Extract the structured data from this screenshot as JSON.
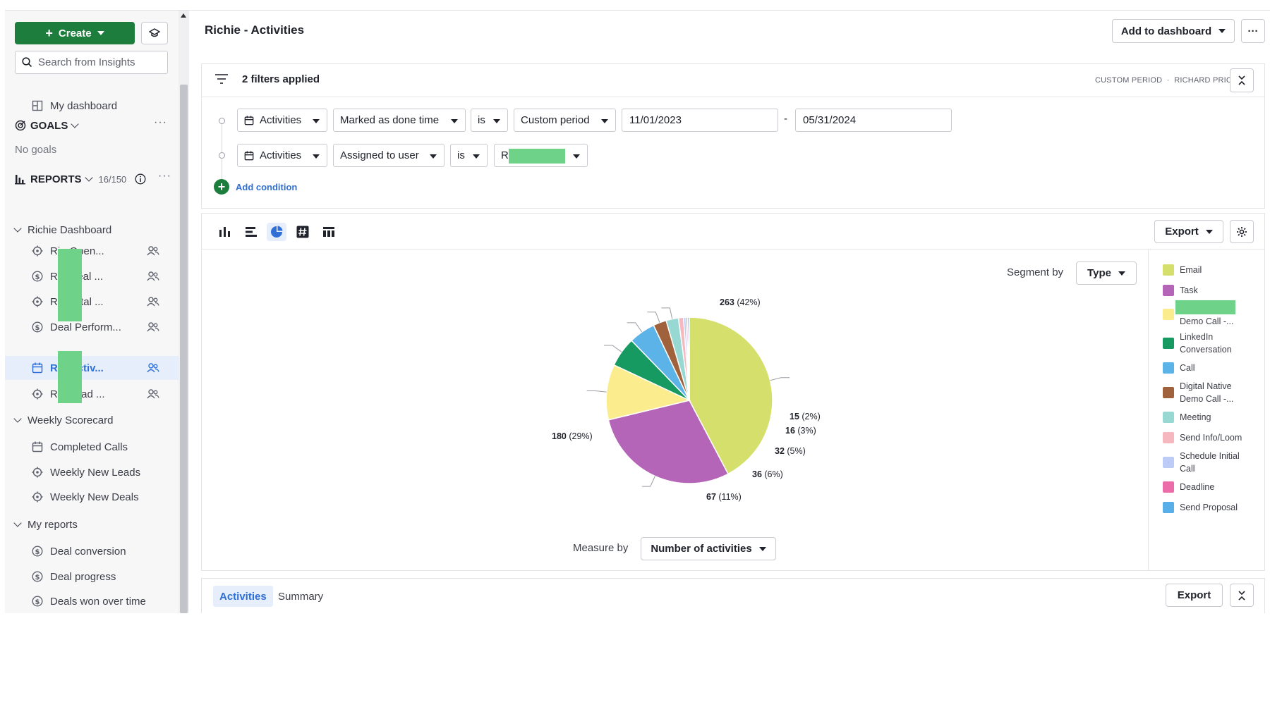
{
  "sidebar": {
    "create_label": "Create",
    "search_placeholder": "Search from Insights",
    "my_dashboard": "My dashboard",
    "goals": {
      "title": "GOALS",
      "empty": "No goals"
    },
    "reports": {
      "title": "REPORTS",
      "count": "16/150"
    },
    "groups": [
      {
        "title": "Richie Dashboard",
        "items": [
          {
            "label": "Ri       - Open...",
            "icon": "target-icon",
            "shared": true
          },
          {
            "label": "Ri       - Deal ...",
            "icon": "dollar-icon",
            "shared": true
          },
          {
            "label": "Ri       - Total ...",
            "icon": "target-icon",
            "shared": true
          },
          {
            "label": "Deal Perform...",
            "icon": "dollar-icon",
            "shared": true
          },
          {
            "label": "Ri       - Activ...",
            "icon": "calendar-icon",
            "shared": true,
            "active": true
          },
          {
            "label": "Ri       - Lead ...",
            "icon": "target-icon",
            "shared": true
          }
        ]
      },
      {
        "title": "Weekly Scorecard",
        "items": [
          {
            "label": "Completed Calls",
            "icon": "calendar-icon"
          },
          {
            "label": "Weekly New Leads",
            "icon": "target-icon"
          },
          {
            "label": "Weekly New Deals",
            "icon": "target-icon"
          }
        ]
      },
      {
        "title": "My reports",
        "items": [
          {
            "label": "Deal conversion",
            "icon": "dollar-icon"
          },
          {
            "label": "Deal progress",
            "icon": "dollar-icon"
          },
          {
            "label": "Deals won over time",
            "icon": "dollar-icon"
          }
        ]
      }
    ]
  },
  "header": {
    "title": "Richie - Activities",
    "add_to_dashboard": "Add to dashboard",
    "more": "···"
  },
  "filters": {
    "title": "2 filters applied",
    "meta_period": "CUSTOM PERIOD",
    "meta_user": "RICHARD PRICE",
    "rows": [
      {
        "entity": "Activities",
        "field": "Marked as done time",
        "op": "is",
        "value": "Custom period",
        "from": "11/01/2023",
        "to": "05/31/2024"
      },
      {
        "entity": "Activities",
        "field": "Assigned to user",
        "op": "is",
        "value": "Ri"
      }
    ],
    "add_condition": "Add condition"
  },
  "chart": {
    "export_label": "Export",
    "segment_label": "Segment by",
    "segment_value": "Type",
    "measure_label": "Measure by",
    "measure_value": "Number of activities"
  },
  "chart_data": {
    "type": "pie",
    "slices": [
      {
        "name": "Email",
        "value": 263,
        "label": "263",
        "pct": "(42%)",
        "color": "#d4df6c"
      },
      {
        "name": "Task",
        "value": 180,
        "label": "180",
        "pct": "(29%)",
        "color": "#b565b8"
      },
      {
        "name": "Demo Call -...",
        "value": 67,
        "label": "67",
        "pct": "(11%)",
        "color": "#fbec8e"
      },
      {
        "name": "LinkedIn Conversation",
        "value": 36,
        "label": "36",
        "pct": "(6%)",
        "color": "#179a62"
      },
      {
        "name": "Call",
        "value": 32,
        "label": "32",
        "pct": "(5%)",
        "color": "#5cb3e8"
      },
      {
        "name": "Digital Native Demo Call -...",
        "value": 16,
        "label": "16",
        "pct": "(3%)",
        "color": "#a0623c"
      },
      {
        "name": "Meeting",
        "value": 15,
        "label": "15",
        "pct": "(2%)",
        "color": "#97d8d3"
      },
      {
        "name": "Send Info/Loom",
        "value": 6,
        "color": "#f6b7bf"
      },
      {
        "name": "Schedule Initial Call",
        "value": 3,
        "color": "#bcccf6"
      },
      {
        "name": "Deadline",
        "value": 2,
        "color": "#ec6ca9"
      },
      {
        "name": "Send Proposal",
        "value": 2,
        "color": "#58aee6"
      }
    ],
    "legend": [
      {
        "name": "Email",
        "color": "#d4df6c"
      },
      {
        "name": "Task",
        "color": "#b565b8"
      },
      {
        "name": "Demo Call -...",
        "color": "#fbec8e",
        "redacted": true
      },
      {
        "name": "LinkedIn Conversation",
        "color": "#179a62"
      },
      {
        "name": "Call",
        "color": "#5cb3e8"
      },
      {
        "name": "Digital Native Demo Call -...",
        "color": "#a0623c"
      },
      {
        "name": "Meeting",
        "color": "#97d8d3"
      },
      {
        "name": "Send Info/Loom",
        "color": "#f6b7bf"
      },
      {
        "name": "Schedule Initial Call",
        "color": "#bcccf6"
      },
      {
        "name": "Deadline",
        "color": "#ec6ca9"
      },
      {
        "name": "Send Proposal",
        "color": "#58aee6"
      }
    ],
    "legend_position": "right"
  },
  "bottom": {
    "tabs": [
      "Activities",
      "Summary"
    ],
    "export_label": "Export"
  }
}
